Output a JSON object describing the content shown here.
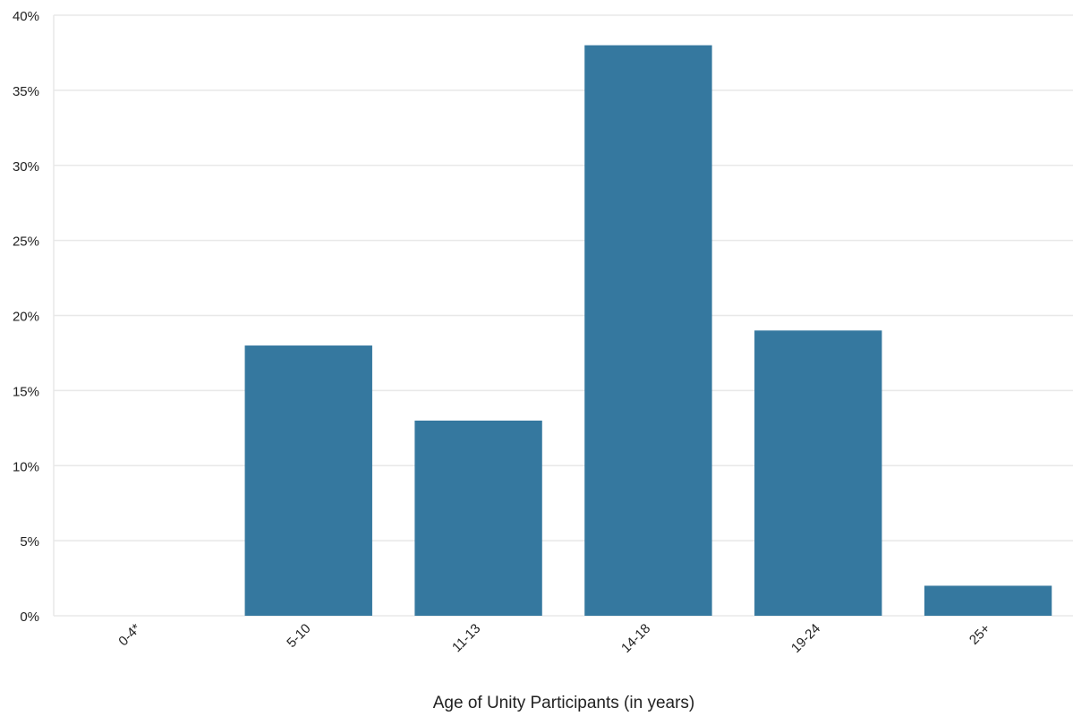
{
  "chart_data": {
    "type": "bar",
    "title": "",
    "xlabel": "Age of Unity Participants (in years)",
    "ylabel": "",
    "categories": [
      "0-4*",
      "5-10",
      "11-13",
      "14-18",
      "19-24",
      "25+"
    ],
    "values": [
      0,
      18,
      13,
      38,
      19,
      2
    ],
    "unit": "%",
    "ylim": [
      0,
      40
    ],
    "yticks": [
      0,
      5,
      10,
      15,
      20,
      25,
      30,
      35,
      40
    ],
    "ytick_labels": [
      "0%",
      "5%",
      "10%",
      "15%",
      "20%",
      "25%",
      "30%",
      "35%",
      "40%"
    ],
    "grid": true,
    "legend": "none",
    "x_tick_rotation": "-45deg",
    "colors": {
      "bar": "#35789f",
      "grid": "#e8e8e8",
      "text": "#222222"
    }
  }
}
